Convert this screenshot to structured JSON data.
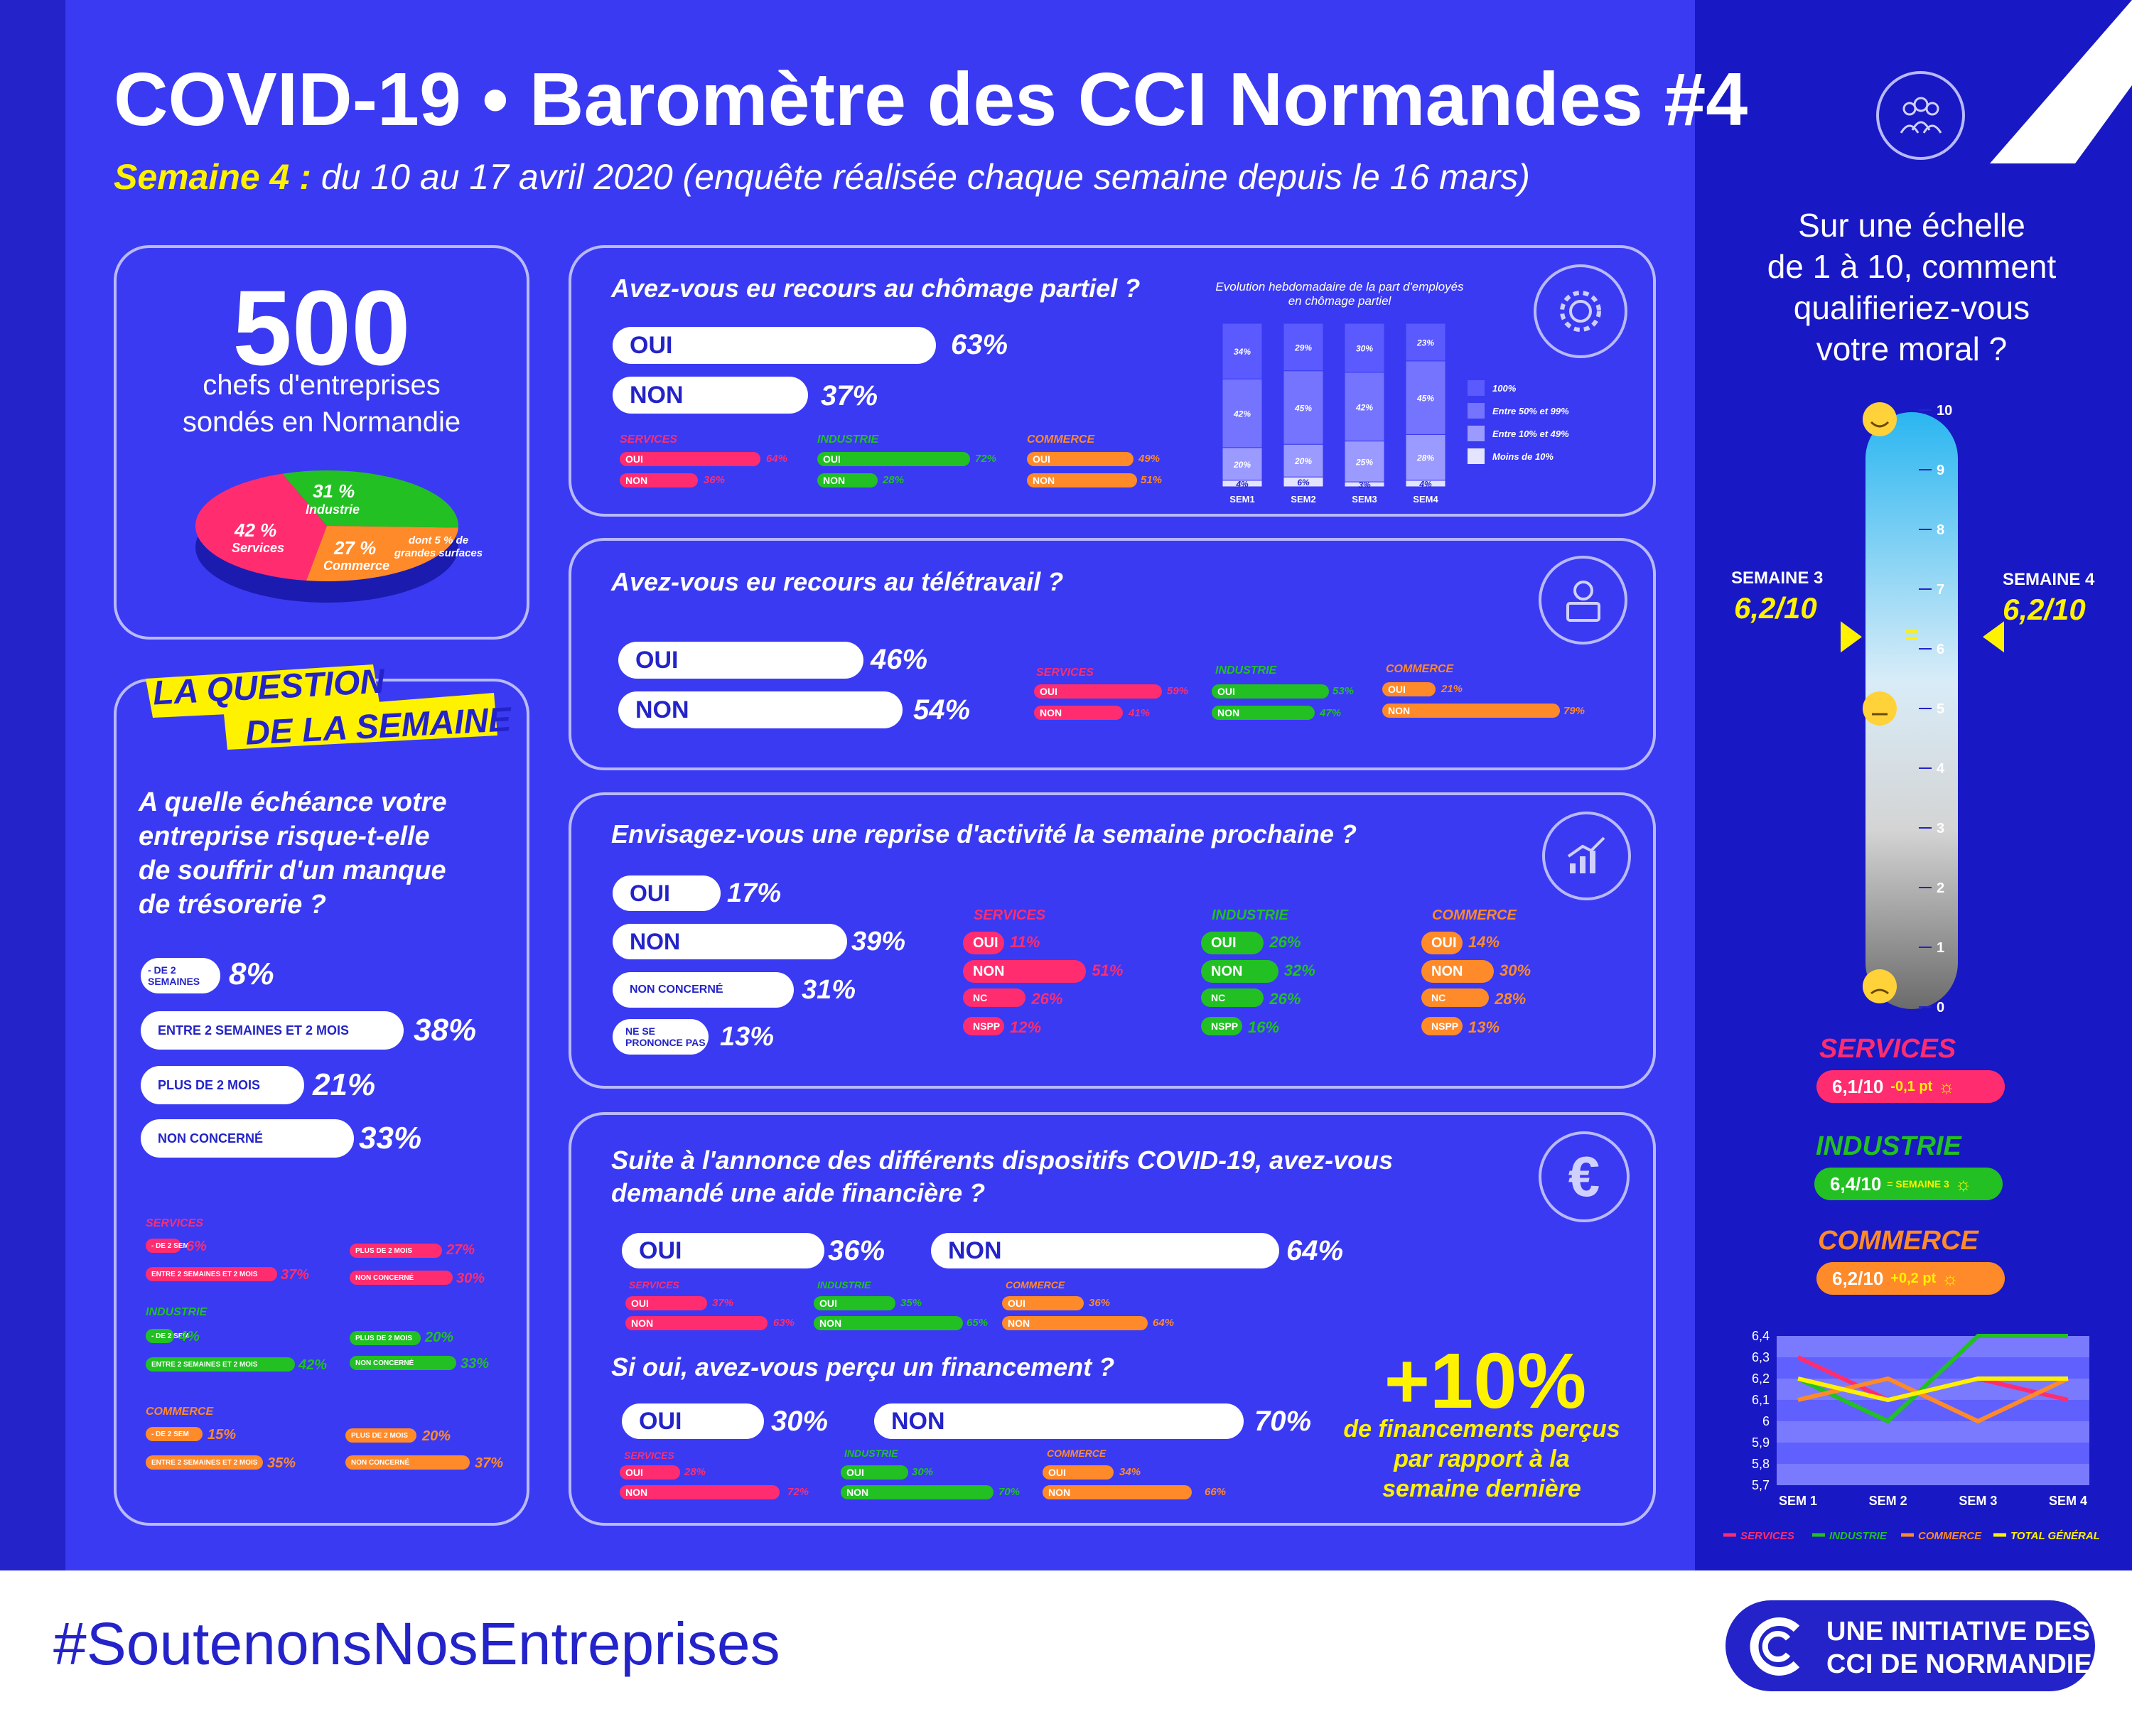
{
  "header": {
    "title": "COVID-19 • Baromètre des CCI Normandes #4",
    "week_label": "Semaine 4 :",
    "subtitle": "du 10 au 17 avril 2020 (enquête réalisée chaque semaine depuis le 16 mars)"
  },
  "respondents": {
    "count": "500",
    "line1": "chefs d'entreprises",
    "line2": "sondés en Normandie",
    "note": "dont 5 % de grandes surfaces"
  },
  "question_semaine": {
    "banner_line1": "LA QUESTION",
    "banner_line2": "DE LA SEMAINE",
    "question_lines": [
      "A quelle échéance votre",
      "entreprise risque-t-elle",
      "de souffrir d'un manque",
      "de trésorerie ?"
    ],
    "options": [
      {
        "label": "- DE 2 SEMAINES",
        "value": "8%"
      },
      {
        "label": "ENTRE 2 SEMAINES ET 2 MOIS",
        "value": "38%"
      },
      {
        "label": "PLUS DE 2 MOIS",
        "value": "21%"
      },
      {
        "label": "NON CONCERNÉ",
        "value": "33%"
      }
    ],
    "sectors": [
      {
        "name": "SERVICES",
        "items": [
          {
            "label": "- DE 2 SEM",
            "value": "6%"
          },
          {
            "label": "PLUS DE 2 MOIS",
            "value": "27%"
          },
          {
            "label": "ENTRE 2 SEMAINES ET 2 MOIS",
            "value": "37%"
          },
          {
            "label": "NON CONCERNÉ",
            "value": "30%"
          }
        ]
      },
      {
        "name": "INDUSTRIE",
        "items": [
          {
            "label": "- DE 2 SEM",
            "value": "4%"
          },
          {
            "label": "PLUS DE 2 MOIS",
            "value": "20%"
          },
          {
            "label": "ENTRE 2 SEMAINES ET 2 MOIS",
            "value": "42%"
          },
          {
            "label": "NON CONCERNÉ",
            "value": "33%"
          }
        ]
      },
      {
        "name": "COMMERCE",
        "items": [
          {
            "label": "- DE 2 SEM",
            "value": "15%"
          },
          {
            "label": "PLUS DE 2 MOIS",
            "value": "20%"
          },
          {
            "label": "ENTRE 2 SEMAINES ET 2 MOIS",
            "value": "35%"
          },
          {
            "label": "NON CONCERNÉ",
            "value": "37%"
          }
        ]
      }
    ]
  },
  "q_chomage": {
    "question": "Avez-vous eu recours au chômage partiel ?",
    "oui": "OUI",
    "oui_value": "63%",
    "non": "NON",
    "non_value": "37%",
    "sectors": [
      {
        "name": "SERVICES",
        "oui": "64%",
        "non": "36%"
      },
      {
        "name": "INDUSTRIE",
        "oui": "72%",
        "non": "28%"
      },
      {
        "name": "COMMERCE",
        "oui": "49%",
        "non": "51%"
      }
    ],
    "evolution_title_1": "Evolution hebdomadaire de la part d'employés",
    "evolution_title_2": "en chômage partiel"
  },
  "q_teletravail": {
    "question": "Avez-vous eu recours au télétravail ?",
    "oui": "OUI",
    "oui_value": "46%",
    "non": "NON",
    "non_value": "54%",
    "sectors": [
      {
        "name": "SERVICES",
        "oui": "59%",
        "non": "41%"
      },
      {
        "name": "INDUSTRIE",
        "oui": "53%",
        "non": "47%"
      },
      {
        "name": "COMMERCE",
        "oui": "21%",
        "non": "79%"
      }
    ]
  },
  "q_reprise": {
    "question": "Envisagez-vous une reprise d'activité la semaine prochaine ?",
    "options": [
      {
        "label": "OUI",
        "value": "17%"
      },
      {
        "label": "NON",
        "value": "39%"
      },
      {
        "label": "NON CONCERNÉ",
        "value": "31%"
      },
      {
        "label": "NE SE PRONONCE PAS",
        "value": "13%"
      }
    ],
    "sectors": [
      {
        "name": "SERVICES",
        "items": [
          [
            "OUI",
            "11%"
          ],
          [
            "NON",
            "51%"
          ],
          [
            "NC",
            "26%"
          ],
          [
            "NSPP",
            "12%"
          ]
        ]
      },
      {
        "name": "INDUSTRIE",
        "items": [
          [
            "OUI",
            "26%"
          ],
          [
            "NON",
            "32%"
          ],
          [
            "NC",
            "26%"
          ],
          [
            "NSPP",
            "16%"
          ]
        ]
      },
      {
        "name": "COMMERCE",
        "items": [
          [
            "OUI",
            "14%"
          ],
          [
            "NON",
            "30%"
          ],
          [
            "NC",
            "28%"
          ],
          [
            "NSPP",
            "13%"
          ]
        ]
      }
    ]
  },
  "q_aide": {
    "question_1": "Suite à l'annonce des différents dispositifs COVID-19, avez-vous",
    "question_2": "demandé une aide financière ?",
    "oui": "OUI",
    "oui_value": "36%",
    "non": "NON",
    "non_value": "64%",
    "sectors": [
      {
        "name": "SERVICES",
        "oui": "37%",
        "non": "63%"
      },
      {
        "name": "INDUSTRIE",
        "oui": "35%",
        "non": "65%"
      },
      {
        "name": "COMMERCE",
        "oui": "36%",
        "non": "64%"
      }
    ],
    "question_3": "Si oui, avez-vous perçu un financement ?",
    "f_oui_value": "30%",
    "f_non_value": "70%",
    "f_sectors": [
      {
        "name": "SERVICES",
        "oui": "28%",
        "non": "72%"
      },
      {
        "name": "INDUSTRIE",
        "oui": "30%",
        "non": "70%"
      },
      {
        "name": "COMMERCE",
        "oui": "34%",
        "non": "66%"
      }
    ],
    "highlight_value": "+10%",
    "highlight_lines": [
      "de financements perçus",
      "par rapport à la",
      "semaine dernière"
    ]
  },
  "moral": {
    "question_lines": [
      "Sur une échelle",
      "de 1 à 10, comment",
      "qualifieriez-vous",
      "votre moral ?"
    ],
    "semaine3_label": "SEMAINE 3",
    "semaine3_value": "6,2/10",
    "semaine4_label": "SEMAINE 4",
    "semaine4_value": "6,2/10",
    "equal_sign": "=",
    "sectors": [
      {
        "name": "SERVICES",
        "score": "6,1/10",
        "delta": "-0,1 pt"
      },
      {
        "name": "INDUSTRIE",
        "score": "6,4/10",
        "delta": "= SEMAINE 3"
      },
      {
        "name": "COMMERCE",
        "score": "6,2/10",
        "delta": "+0,2 pt"
      }
    ]
  },
  "footer": {
    "hashtag": "#SoutenonsNosEntreprises",
    "initiative_1": "UNE INITIATIVE DES",
    "initiative_2": "CCI DE NORMANDIE"
  },
  "colors": {
    "services": "#ff2d6f",
    "industrie": "#22c022",
    "commerce": "#ff8a2a",
    "total": "#fff200",
    "background": "#3a3af2"
  },
  "chart_data": [
    {
      "type": "pie",
      "categories": [
        "Services",
        "Industrie",
        "Commerce"
      ],
      "values": [
        42,
        31,
        27
      ],
      "labels": [
        "42 %",
        "31 %",
        "27 %"
      ]
    },
    {
      "type": "bar",
      "stacked": true,
      "title": "Evolution hebdomadaire de la part d'employés en chômage partiel",
      "categories": [
        "SEM1",
        "SEM2",
        "SEM3",
        "SEM4"
      ],
      "series": [
        {
          "name": "Moins de 10%",
          "values": [
            4,
            6,
            3,
            4
          ]
        },
        {
          "name": "Entre 10% et 49%",
          "values": [
            20,
            20,
            25,
            28
          ]
        },
        {
          "name": "Entre 50% et 99%",
          "values": [
            42,
            45,
            42,
            45
          ]
        },
        {
          "name": "100%",
          "values": [
            34,
            29,
            30,
            23
          ]
        }
      ]
    },
    {
      "type": "line",
      "categories": [
        "SEM 1",
        "SEM 2",
        "SEM 3",
        "SEM 4"
      ],
      "ylim": [
        5.7,
        6.4
      ],
      "yticks": [
        "5,7",
        "5,8",
        "5,9",
        "6",
        "6,1",
        "6,2",
        "6,3",
        "6,4"
      ],
      "series": [
        {
          "name": "SERVICES",
          "values": [
            6.3,
            6.1,
            6.2,
            6.1
          ]
        },
        {
          "name": "INDUSTRIE",
          "values": [
            6.2,
            6.0,
            6.4,
            6.4
          ]
        },
        {
          "name": "COMMERCE",
          "values": [
            6.1,
            6.2,
            6.0,
            6.2
          ]
        },
        {
          "name": "TOTAL GÉNÉRAL",
          "values": [
            6.2,
            6.1,
            6.2,
            6.2
          ]
        }
      ]
    },
    {
      "type": "gauge",
      "scale_min": 0,
      "scale_max": 10,
      "ticks": [
        "0",
        "1",
        "2",
        "3",
        "4",
        "5",
        "6",
        "7",
        "8",
        "9",
        "10"
      ],
      "semaine3": 6.2,
      "semaine4": 6.2
    }
  ]
}
